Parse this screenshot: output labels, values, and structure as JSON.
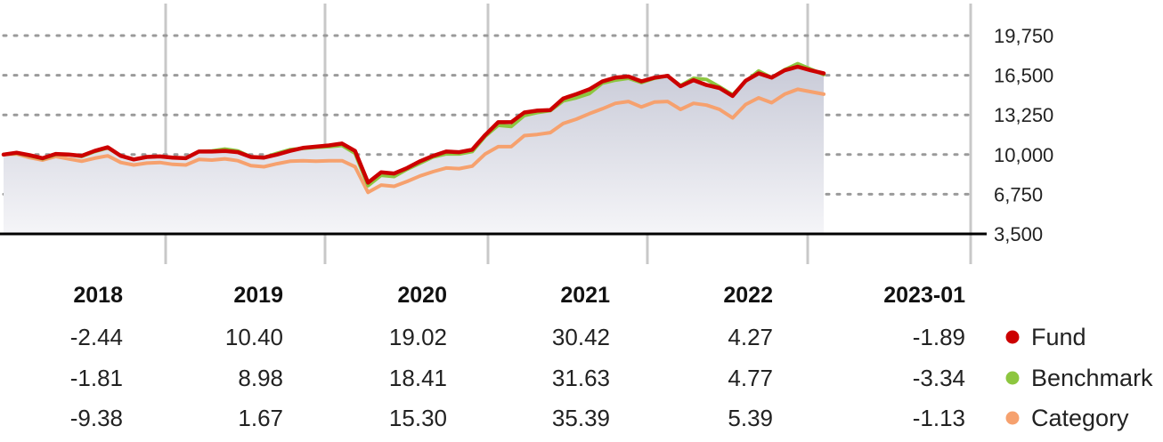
{
  "chart_data": {
    "type": "line",
    "y_ticks": [
      "19,750",
      "16,500",
      "13,250",
      "10,000",
      "6,750",
      "3,500"
    ],
    "y_tick_values": [
      19750,
      16500,
      13250,
      10000,
      6750,
      3500
    ],
    "ylim": [
      3500,
      19750
    ],
    "grid": "horizontal dotted",
    "legend_position": "bottom-right",
    "series": [
      {
        "name": "Fund",
        "color": "#cc0000",
        "values": [
          10000,
          10150,
          9950,
          9700,
          10050,
          10000,
          9900,
          10300,
          10600,
          9900,
          9600,
          9800,
          9850,
          9750,
          9700,
          10250,
          10250,
          10300,
          10200,
          9800,
          9750,
          10000,
          10300,
          10550,
          10650,
          10750,
          10900,
          10300,
          7700,
          8550,
          8450,
          8900,
          9450,
          9900,
          10250,
          10200,
          10400,
          11600,
          12650,
          12650,
          13450,
          13600,
          13650,
          14600,
          14950,
          15350,
          16000,
          16300,
          16400,
          16000,
          16300,
          16450,
          15600,
          16100,
          15700,
          15450,
          14800,
          16050,
          16650,
          16300,
          16900,
          17200,
          16900,
          16650
        ]
      },
      {
        "name": "Benchmark",
        "color": "#8dc63f",
        "values": [
          10000,
          10120,
          9900,
          9650,
          10000,
          10000,
          9850,
          10250,
          10550,
          9900,
          9600,
          9800,
          9850,
          9750,
          9700,
          10250,
          10300,
          10450,
          10300,
          9800,
          9750,
          10100,
          10400,
          10500,
          10600,
          10650,
          10750,
          10100,
          7450,
          8300,
          8200,
          8800,
          9300,
          9800,
          10050,
          10050,
          10250,
          11500,
          12400,
          12300,
          13200,
          13450,
          13600,
          14400,
          14650,
          15000,
          15850,
          16100,
          16250,
          15900,
          16250,
          16450,
          15650,
          16250,
          16150,
          15550,
          14900,
          16000,
          16850,
          16300,
          16950,
          17450,
          17000,
          16550
        ]
      },
      {
        "name": "Category",
        "color": "#f6a16e",
        "values": [
          10000,
          10050,
          9750,
          9550,
          9850,
          9650,
          9450,
          9700,
          9900,
          9350,
          9150,
          9300,
          9350,
          9200,
          9150,
          9600,
          9550,
          9650,
          9500,
          9100,
          9000,
          9250,
          9450,
          9500,
          9450,
          9500,
          9500,
          9000,
          6900,
          7500,
          7400,
          7800,
          8250,
          8600,
          8900,
          8850,
          9050,
          10050,
          10650,
          10650,
          11550,
          11650,
          11800,
          12550,
          12900,
          13350,
          13750,
          14200,
          14350,
          13900,
          14300,
          14350,
          13700,
          14200,
          14050,
          13700,
          13000,
          14100,
          14650,
          14250,
          14950,
          15350,
          15150,
          14950
        ]
      }
    ],
    "returns": {
      "years": [
        "2018",
        "2019",
        "2020",
        "2021",
        "2022",
        "2023-01"
      ],
      "rows": [
        {
          "name": "Fund",
          "values": [
            "-2.44",
            "10.40",
            "19.02",
            "30.42",
            "4.27",
            "-1.89"
          ]
        },
        {
          "name": "Benchmark",
          "values": [
            "-1.81",
            "8.98",
            "18.41",
            "31.63",
            "4.77",
            "-3.34"
          ]
        },
        {
          "name": "Category",
          "values": [
            "-9.38",
            "1.67",
            "15.30",
            "35.39",
            "5.39",
            "-1.13"
          ]
        }
      ]
    }
  }
}
